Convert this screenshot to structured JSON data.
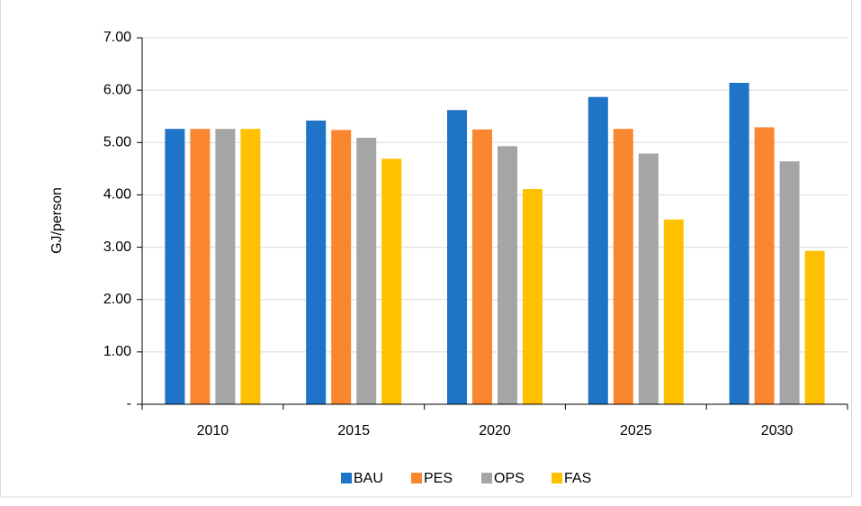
{
  "chart_data": {
    "type": "bar",
    "y_label": "GJ/person",
    "categories": [
      "2010",
      "2015",
      "2020",
      "2025",
      "2030"
    ],
    "series": [
      {
        "name": "BAU",
        "color": "#1f74c7",
        "values": [
          5.26,
          5.42,
          5.62,
          5.87,
          6.14
        ]
      },
      {
        "name": "PES",
        "color": "#fb8630",
        "values": [
          5.26,
          5.24,
          5.25,
          5.26,
          5.29
        ]
      },
      {
        "name": "OPS",
        "color": "#a5a5a5",
        "values": [
          5.26,
          5.09,
          4.93,
          4.79,
          4.64
        ]
      },
      {
        "name": "FAS",
        "color": "#ffc000",
        "values": [
          5.26,
          4.69,
          4.11,
          3.53,
          2.93
        ]
      }
    ],
    "ylim": [
      0,
      7
    ],
    "yticks": [
      {
        "value": 0,
        "label": "-"
      },
      {
        "value": 1,
        "label": "1.00"
      },
      {
        "value": 2,
        "label": "2.00"
      },
      {
        "value": 3,
        "label": "3.00"
      },
      {
        "value": 4,
        "label": "4.00"
      },
      {
        "value": 5,
        "label": "5.00"
      },
      {
        "value": 6,
        "label": "6.00"
      },
      {
        "value": 7,
        "label": "7.00"
      }
    ],
    "grid": true,
    "legend": "bottom"
  }
}
